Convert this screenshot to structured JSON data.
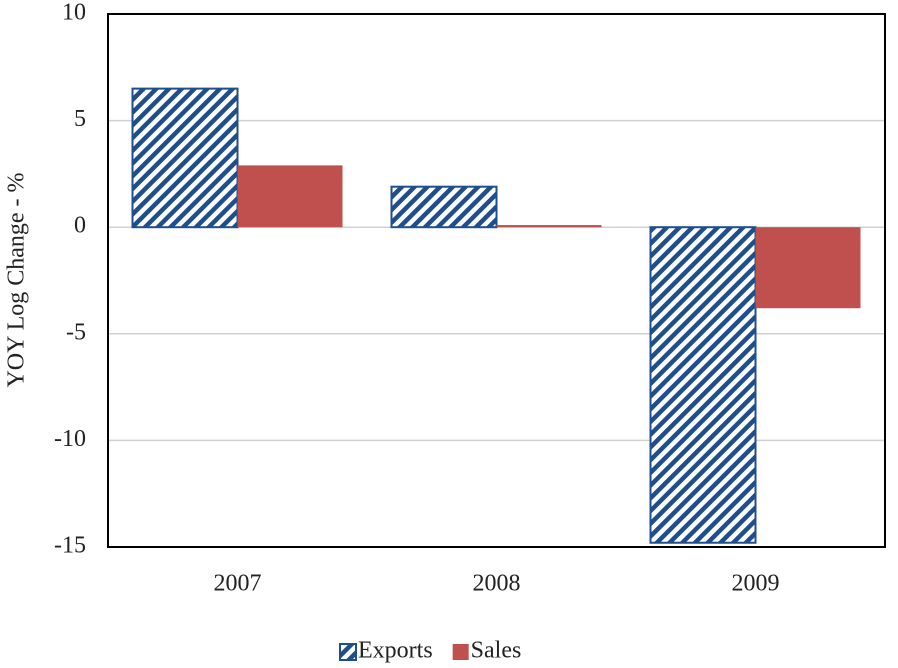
{
  "chart_data": {
    "type": "bar",
    "y_label": "YOY Log Change - %",
    "categories": [
      "2007",
      "2008",
      "2009"
    ],
    "series": [
      {
        "name": "Exports",
        "color": "#1f4e8c",
        "pattern": "hatch",
        "values": [
          6.5,
          1.9,
          -14.8
        ]
      },
      {
        "name": "Sales",
        "color": "#c0504d",
        "values": [
          2.9,
          0.1,
          -3.8
        ]
      }
    ],
    "ylim": [
      -15,
      10
    ],
    "yticks": [
      -15,
      -10,
      -5,
      0,
      5,
      10
    ],
    "grid": true,
    "legend": "bottom"
  }
}
